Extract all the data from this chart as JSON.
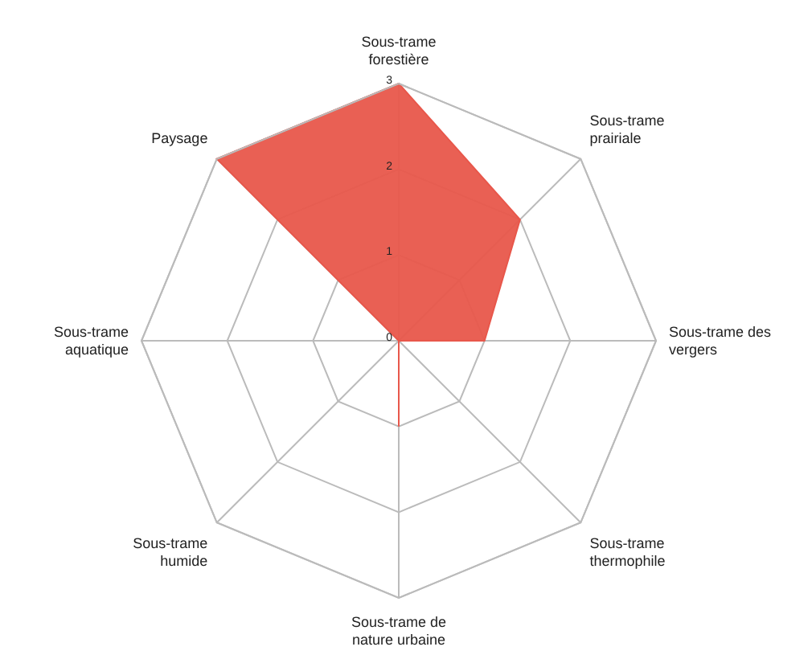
{
  "chart_data": {
    "type": "radar",
    "categories": [
      "Sous-trame forestière",
      "Sous-trame prairiale",
      "Sous-trame des vergers",
      "Sous-trame thermophile",
      "Sous-trame de nature urbaine",
      "Sous-trame humide",
      "Sous-trame aquatique",
      "Paysage"
    ],
    "series": [
      {
        "color": "#e8574b",
        "values": [
          3,
          2,
          1,
          0,
          1,
          0,
          0,
          3
        ]
      }
    ],
    "ylim": [
      0,
      3
    ],
    "yticks": [
      0,
      1,
      2,
      3
    ],
    "grid": true
  }
}
